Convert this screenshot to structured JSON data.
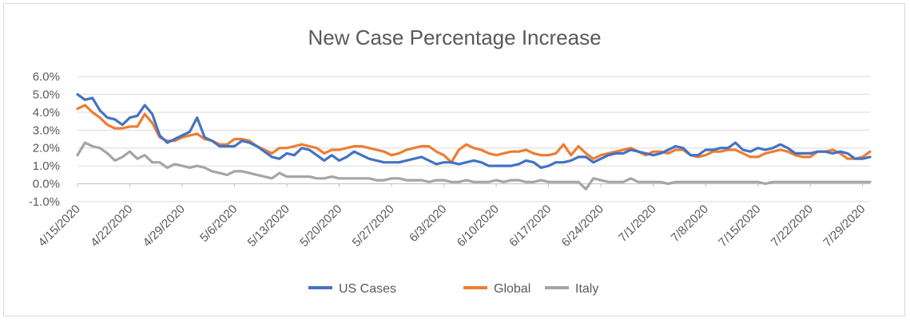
{
  "chart_data": {
    "type": "line",
    "title": "New Case Percentage Increase",
    "xlabel": "",
    "ylabel": "",
    "ylim": [
      -0.01,
      0.06
    ],
    "yticks": [
      -0.01,
      0.0,
      0.01,
      0.02,
      0.03,
      0.04,
      0.05,
      0.06
    ],
    "ytick_labels": [
      "-1.0%",
      "0.0%",
      "1.0%",
      "2.0%",
      "3.0%",
      "4.0%",
      "5.0%",
      "6.0%"
    ],
    "xtick_labels": [
      "4/15/2020",
      "4/22/2020",
      "4/29/2020",
      "5/6/2020",
      "5/13/2020",
      "5/20/2020",
      "5/27/2020",
      "6/3/2020",
      "6/10/2020",
      "6/17/2020",
      "6/24/2020",
      "7/1/2020",
      "7/8/2020",
      "7/15/2020",
      "7/22/2020",
      "7/29/2020"
    ],
    "xtick_interval_days": 7,
    "num_points": 107,
    "grid": "horizontal",
    "legend_position": "bottom",
    "series": [
      {
        "name": "US Cases",
        "color": "#4472C4",
        "values": [
          0.05,
          0.047,
          0.048,
          0.041,
          0.037,
          0.036,
          0.033,
          0.037,
          0.038,
          0.044,
          0.039,
          0.027,
          0.023,
          0.025,
          0.027,
          0.029,
          0.037,
          0.026,
          0.024,
          0.021,
          0.021,
          0.021,
          0.024,
          0.023,
          0.021,
          0.018,
          0.015,
          0.014,
          0.017,
          0.016,
          0.02,
          0.019,
          0.016,
          0.013,
          0.016,
          0.013,
          0.015,
          0.018,
          0.016,
          0.014,
          0.013,
          0.012,
          0.012,
          0.012,
          0.013,
          0.014,
          0.015,
          0.013,
          0.011,
          0.012,
          0.012,
          0.011,
          0.012,
          0.013,
          0.012,
          0.01,
          0.01,
          0.01,
          0.01,
          0.011,
          0.013,
          0.012,
          0.009,
          0.01,
          0.012,
          0.012,
          0.013,
          0.015,
          0.015,
          0.012,
          0.014,
          0.016,
          0.017,
          0.017,
          0.019,
          0.018,
          0.017,
          0.016,
          0.017,
          0.019,
          0.021,
          0.02,
          0.016,
          0.016,
          0.019,
          0.019,
          0.02,
          0.02,
          0.023,
          0.019,
          0.018,
          0.02,
          0.019,
          0.02,
          0.022,
          0.02,
          0.017,
          0.017,
          0.017,
          0.018,
          0.018,
          0.017,
          0.018,
          0.017,
          0.014,
          0.014,
          0.015
        ]
      },
      {
        "name": "Global",
        "color": "#ED7D31",
        "values": [
          0.042,
          0.044,
          0.04,
          0.037,
          0.033,
          0.031,
          0.031,
          0.032,
          0.032,
          0.039,
          0.034,
          0.026,
          0.024,
          0.024,
          0.026,
          0.027,
          0.028,
          0.025,
          0.024,
          0.022,
          0.022,
          0.025,
          0.025,
          0.024,
          0.021,
          0.019,
          0.017,
          0.02,
          0.02,
          0.021,
          0.022,
          0.021,
          0.02,
          0.017,
          0.019,
          0.019,
          0.02,
          0.021,
          0.021,
          0.02,
          0.019,
          0.018,
          0.016,
          0.017,
          0.019,
          0.02,
          0.021,
          0.021,
          0.018,
          0.016,
          0.012,
          0.019,
          0.022,
          0.02,
          0.019,
          0.017,
          0.016,
          0.017,
          0.018,
          0.018,
          0.019,
          0.017,
          0.016,
          0.016,
          0.017,
          0.022,
          0.016,
          0.021,
          0.017,
          0.014,
          0.016,
          0.017,
          0.018,
          0.019,
          0.02,
          0.018,
          0.016,
          0.018,
          0.018,
          0.017,
          0.019,
          0.019,
          0.016,
          0.015,
          0.016,
          0.018,
          0.018,
          0.019,
          0.019,
          0.017,
          0.015,
          0.015,
          0.017,
          0.018,
          0.019,
          0.018,
          0.016,
          0.015,
          0.015,
          0.018,
          0.018,
          0.019,
          0.017,
          0.014,
          0.014,
          0.015,
          0.018
        ]
      },
      {
        "name": "Italy",
        "color": "#A5A5A5",
        "values": [
          0.016,
          0.023,
          0.021,
          0.02,
          0.017,
          0.013,
          0.015,
          0.018,
          0.014,
          0.016,
          0.012,
          0.012,
          0.009,
          0.011,
          0.01,
          0.009,
          0.01,
          0.009,
          0.007,
          0.006,
          0.005,
          0.007,
          0.007,
          0.006,
          0.005,
          0.004,
          0.003,
          0.006,
          0.004,
          0.004,
          0.004,
          0.004,
          0.003,
          0.003,
          0.004,
          0.003,
          0.003,
          0.003,
          0.003,
          0.003,
          0.002,
          0.002,
          0.003,
          0.003,
          0.002,
          0.002,
          0.002,
          0.001,
          0.002,
          0.002,
          0.001,
          0.001,
          0.002,
          0.001,
          0.001,
          0.001,
          0.002,
          0.001,
          0.002,
          0.002,
          0.001,
          0.001,
          0.002,
          0.001,
          0.001,
          0.001,
          0.001,
          0.001,
          -0.003,
          0.003,
          0.002,
          0.001,
          0.001,
          0.001,
          0.003,
          0.001,
          0.001,
          0.001,
          0.001,
          0.0,
          0.001,
          0.001,
          0.001,
          0.001,
          0.001,
          0.001,
          0.001,
          0.001,
          0.001,
          0.001,
          0.001,
          0.001,
          0.0,
          0.001,
          0.001,
          0.001,
          0.001,
          0.001,
          0.001,
          0.001,
          0.001,
          0.001,
          0.001,
          0.001,
          0.001,
          0.001,
          0.001
        ]
      }
    ]
  }
}
